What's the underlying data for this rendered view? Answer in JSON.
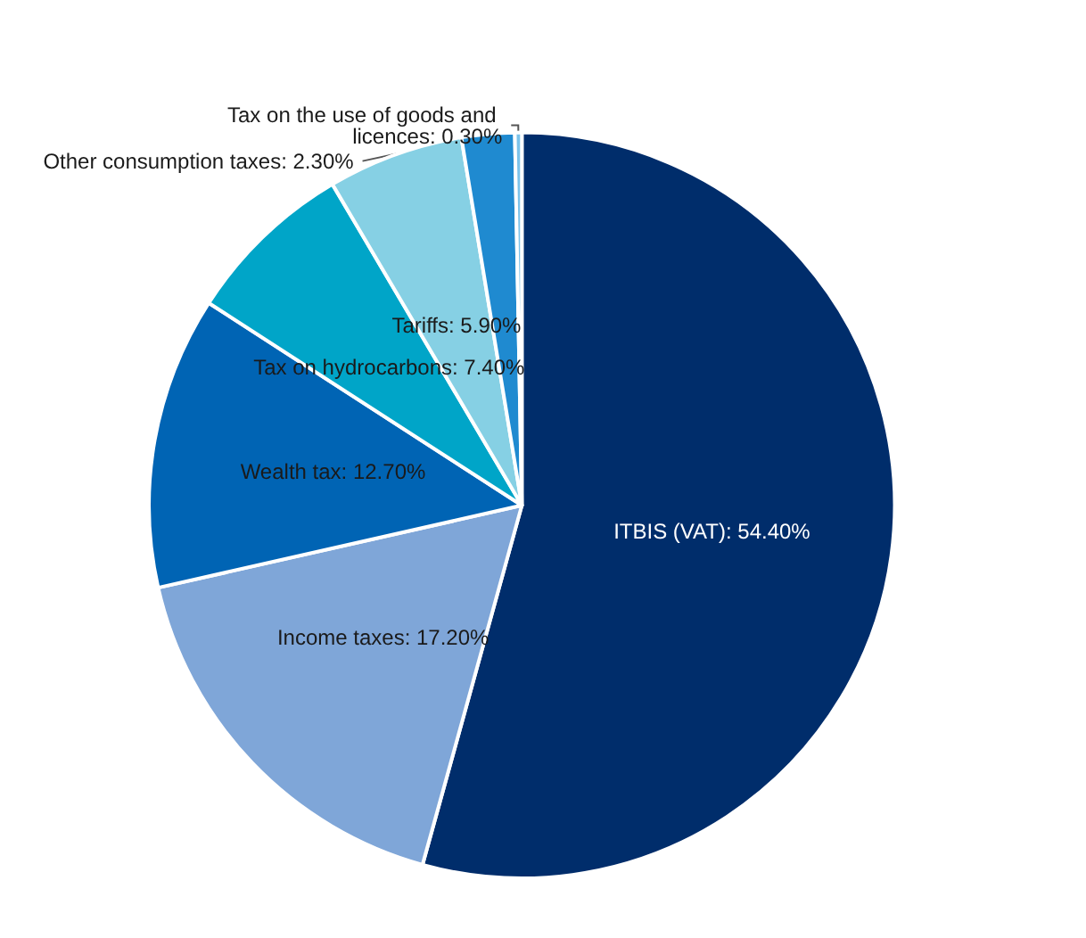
{
  "chart_data": {
    "type": "pie",
    "categories": [
      "ITBIS (VAT)",
      "Income taxes",
      "Wealth tax",
      "Tax on hydrocarbons",
      "Tariffs",
      "Other consumption taxes",
      "Tax on the use of goods and licences"
    ],
    "values": [
      54.4,
      17.2,
      12.7,
      7.4,
      5.9,
      2.3,
      0.3
    ],
    "value_labels": [
      "54.40%",
      "17.20%",
      "12.70%",
      "7.40%",
      "5.90%",
      "2.30%",
      "0.30%"
    ],
    "colors": [
      "#002d6b",
      "#7fa6d8",
      "#0064b4",
      "#00a5c8",
      "#86d0e4",
      "#1f8ad0",
      "#7cc3ea"
    ],
    "legend": false
  }
}
